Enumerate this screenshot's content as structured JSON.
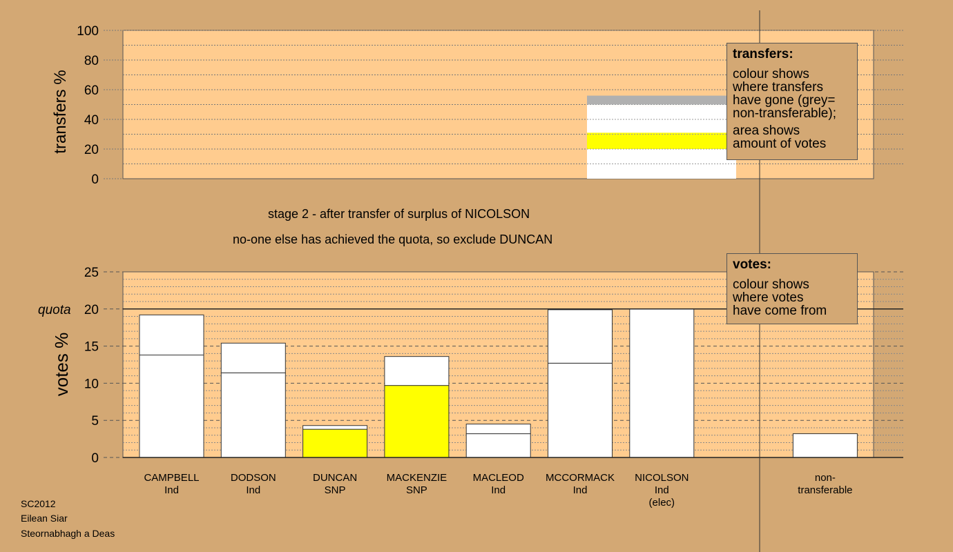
{
  "header": {
    "stage_line": "stage 2 - after transfer of surplus of NICOLSON",
    "note_line": "no-one else has achieved the quota, so exclude DUNCAN"
  },
  "legends": {
    "transfers": {
      "title": "transfers:",
      "lines": [
        "colour shows",
        "where transfers",
        "have gone (grey=",
        "non-transferable);"
      ],
      "lines2": [
        "area shows",
        "amount of votes"
      ]
    },
    "votes": {
      "title": "votes:",
      "lines": [
        "colour shows",
        "where votes",
        "have come from"
      ]
    }
  },
  "footer": [
    "SC2012",
    "Eilean Siar",
    "Steornabhagh a Deas"
  ],
  "colors": {
    "background": "#d3a874",
    "plot_area": "#ffcc8f",
    "snp": "#ffff00",
    "ind": "#ffffff",
    "non_transferable": "#b0b0b0"
  },
  "chart_data": [
    {
      "type": "bar",
      "id": "transfers",
      "ylabel": "transfers %",
      "ylim": [
        0,
        100
      ],
      "yticks": [
        0,
        20,
        40,
        60,
        80,
        100
      ],
      "grid": true,
      "source_column": 6,
      "stack": [
        {
          "name": "CAMPBELL",
          "from": 0,
          "to": 10,
          "color": "#ffffff"
        },
        {
          "name": "DODSON",
          "from": 10,
          "to": 20,
          "color": "#ffffff"
        },
        {
          "name": "MACKENZIE",
          "from": 20,
          "to": 30,
          "color": "#ffff00"
        },
        {
          "name": "DUNCAN",
          "from": 30,
          "to": 31,
          "color": "#ffff00"
        },
        {
          "name": "MCCORMACK",
          "from": 31,
          "to": 49,
          "color": "#ffffff"
        },
        {
          "name": "MACLEOD",
          "from": 49,
          "to": 50,
          "color": "#ffffff"
        },
        {
          "name": "non-transferable",
          "from": 50,
          "to": 56,
          "color": "#b0b0b0"
        }
      ]
    },
    {
      "type": "bar",
      "id": "votes",
      "ylabel": "votes %",
      "ylim": [
        0,
        25
      ],
      "yticks": [
        0,
        5,
        10,
        15,
        20,
        25
      ],
      "quota": 20,
      "quota_label": "quota",
      "grid": true,
      "categories": [
        {
          "name": "CAMPBELL",
          "party": "Ind",
          "extra": ""
        },
        {
          "name": "DODSON",
          "party": "Ind",
          "extra": ""
        },
        {
          "name": "DUNCAN",
          "party": "SNP",
          "extra": ""
        },
        {
          "name": "MACKENZIE",
          "party": "SNP",
          "extra": ""
        },
        {
          "name": "MACLEOD",
          "party": "Ind",
          "extra": ""
        },
        {
          "name": "MCCORMACK",
          "party": "Ind",
          "extra": ""
        },
        {
          "name": "NICOLSON",
          "party": "Ind",
          "extra": "(elec)"
        },
        {
          "name": "",
          "party": "",
          "extra": ""
        },
        {
          "name": "non-",
          "party": "transferable",
          "extra": ""
        }
      ],
      "first_prefs": [
        13.8,
        11.4,
        3.8,
        9.7,
        3.2,
        12.7,
        20.0,
        0,
        0
      ],
      "transfers_in": [
        5.4,
        4.0,
        0.5,
        3.9,
        1.3,
        7.2,
        0,
        0,
        3.2
      ],
      "colors": [
        "#ffffff",
        "#ffffff",
        "#ffff00",
        "#ffff00",
        "#ffffff",
        "#ffffff",
        "#ffffff",
        "#ffffff",
        "#ffffff"
      ]
    }
  ]
}
